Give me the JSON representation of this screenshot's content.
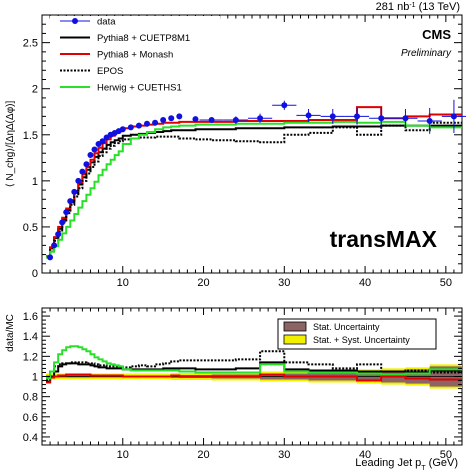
{
  "header": {
    "lumi_value": "281 nb",
    "lumi_exp": "-1",
    "lumi_energy": " (13 TeV)",
    "cms": "CMS",
    "preliminary": "Preliminary",
    "region": "transMAX"
  },
  "chart_data": [
    {
      "type": "line",
      "panel": "main",
      "ylabel": "⟨ N_chg⟩/[ΔηΔ(Δφ)]",
      "xlim": [
        0,
        52
      ],
      "ylim": [
        0,
        2.8
      ],
      "xticks": [
        10,
        20,
        30,
        40,
        50
      ],
      "yticks": [
        0,
        0.5,
        1,
        1.5,
        2,
        2.5
      ],
      "legend_position": "top-left",
      "data": {
        "name": "data",
        "color": "#1010e0",
        "x": [
          1.0,
          1.5,
          2.0,
          2.5,
          3.0,
          3.5,
          4.0,
          4.5,
          5.0,
          5.5,
          6.0,
          6.5,
          7.0,
          7.5,
          8.0,
          8.5,
          9.0,
          9.5,
          10.0,
          11.0,
          12.0,
          13.0,
          14.0,
          15.0,
          16.0,
          17.0,
          19.0,
          21.0,
          24.0,
          27.0,
          30.0,
          33.0,
          36.0,
          39.0,
          42.0,
          45.0,
          48.0,
          51.0
        ],
        "y": [
          0.17,
          0.3,
          0.42,
          0.55,
          0.66,
          0.78,
          0.88,
          1.0,
          1.1,
          1.18,
          1.28,
          1.34,
          1.4,
          1.43,
          1.47,
          1.5,
          1.52,
          1.54,
          1.56,
          1.58,
          1.6,
          1.62,
          1.63,
          1.66,
          1.68,
          1.7,
          1.67,
          1.66,
          1.66,
          1.68,
          1.82,
          1.71,
          1.7,
          1.7,
          1.68,
          1.68,
          1.65,
          1.7
        ],
        "yerr": [
          0.01,
          0.01,
          0.01,
          0.01,
          0.01,
          0.01,
          0.01,
          0.01,
          0.01,
          0.01,
          0.01,
          0.01,
          0.01,
          0.01,
          0.01,
          0.01,
          0.01,
          0.01,
          0.01,
          0.02,
          0.02,
          0.02,
          0.02,
          0.02,
          0.02,
          0.03,
          0.03,
          0.03,
          0.04,
          0.05,
          0.05,
          0.07,
          0.08,
          0.09,
          0.12,
          0.1,
          0.14,
          0.18
        ]
      },
      "edges": [
        0.5,
        1.0,
        1.5,
        2.0,
        2.5,
        3.0,
        3.5,
        4.0,
        4.5,
        5.0,
        5.5,
        6.0,
        6.5,
        7.0,
        7.5,
        8.0,
        8.5,
        9.0,
        9.5,
        10.0,
        11.0,
        12.0,
        13.0,
        14.0,
        15.0,
        16.0,
        17.0,
        19.0,
        21.0,
        24.0,
        27.0,
        30.0,
        33.0,
        36.0,
        39.0,
        42.0,
        45.0,
        48.0,
        52.0
      ],
      "series": [
        {
          "name": "Pythia8 + CUETP8M1",
          "color": "#000000",
          "dash": "solid",
          "values": [
            0.18,
            0.27,
            0.38,
            0.48,
            0.58,
            0.68,
            0.77,
            0.87,
            0.96,
            1.04,
            1.12,
            1.2,
            1.26,
            1.31,
            1.35,
            1.39,
            1.42,
            1.44,
            1.46,
            1.49,
            1.5,
            1.51,
            1.52,
            1.53,
            1.54,
            1.55,
            1.55,
            1.56,
            1.56,
            1.57,
            1.57,
            1.58,
            1.58,
            1.59,
            1.59,
            1.6,
            1.6,
            1.6
          ]
        },
        {
          "name": "Pythia8 + Monash",
          "color": "#e00000",
          "dash": "solid",
          "values": [
            0.18,
            0.28,
            0.39,
            0.5,
            0.6,
            0.7,
            0.79,
            0.89,
            0.98,
            1.07,
            1.15,
            1.23,
            1.3,
            1.36,
            1.41,
            1.45,
            1.49,
            1.52,
            1.54,
            1.57,
            1.59,
            1.6,
            1.61,
            1.62,
            1.63,
            1.63,
            1.64,
            1.64,
            1.64,
            1.65,
            1.65,
            1.65,
            1.66,
            1.66,
            1.8,
            1.68,
            1.7,
            1.72
          ]
        },
        {
          "name": "EPOS",
          "color": "#000000",
          "dash": "dotted",
          "values": [
            0.17,
            0.25,
            0.35,
            0.45,
            0.55,
            0.65,
            0.74,
            0.83,
            0.92,
            1.0,
            1.08,
            1.15,
            1.21,
            1.27,
            1.31,
            1.35,
            1.38,
            1.41,
            1.43,
            1.45,
            1.46,
            1.47,
            1.47,
            1.48,
            1.48,
            1.48,
            1.46,
            1.45,
            1.44,
            1.43,
            1.42,
            1.5,
            1.52,
            1.58,
            1.5,
            1.6,
            1.55,
            1.63
          ]
        },
        {
          "name": "Herwig + CUETHS1",
          "color": "#28e028",
          "dash": "solid",
          "values": [
            0.17,
            0.23,
            0.29,
            0.36,
            0.43,
            0.5,
            0.57,
            0.64,
            0.71,
            0.78,
            0.85,
            0.92,
            0.99,
            1.06,
            1.12,
            1.18,
            1.23,
            1.28,
            1.32,
            1.4,
            1.46,
            1.5,
            1.53,
            1.56,
            1.58,
            1.59,
            1.6,
            1.61,
            1.61,
            1.62,
            1.62,
            1.63,
            1.63,
            1.64,
            1.63,
            1.64,
            1.6,
            1.58
          ]
        }
      ]
    },
    {
      "type": "line",
      "panel": "ratio",
      "ylabel": "data/MC",
      "xlabel": "Leading Jet p",
      "xlabel_sub": "T",
      "xlabel_unit": " (GeV)",
      "xlim": [
        0,
        52
      ],
      "ylim": [
        0.32,
        1.68
      ],
      "xticks": [
        10,
        20,
        30,
        40,
        50
      ],
      "yticks": [
        0.4,
        0.6,
        0.8,
        1,
        1.2,
        1.4,
        1.6
      ],
      "legend_position": "top-right",
      "uncertainty_bands": [
        {
          "name": "Stat. Uncertainty",
          "color": "#8c6464"
        },
        {
          "name": "Stat. + Syst. Uncertainty",
          "color": "#f0f000"
        }
      ],
      "band_halfwidth_stat": [
        0.01,
        0.01,
        0.01,
        0.01,
        0.01,
        0.01,
        0.01,
        0.01,
        0.01,
        0.01,
        0.01,
        0.01,
        0.01,
        0.01,
        0.01,
        0.01,
        0.01,
        0.01,
        0.01,
        0.01,
        0.01,
        0.01,
        0.01,
        0.01,
        0.01,
        0.015,
        0.015,
        0.015,
        0.02,
        0.02,
        0.03,
        0.03,
        0.04,
        0.04,
        0.05,
        0.06,
        0.07,
        0.1
      ],
      "band_halfwidth_syst": [
        0.03,
        0.03,
        0.03,
        0.03,
        0.03,
        0.03,
        0.03,
        0.03,
        0.03,
        0.03,
        0.03,
        0.03,
        0.03,
        0.03,
        0.03,
        0.03,
        0.03,
        0.03,
        0.03,
        0.03,
        0.03,
        0.03,
        0.03,
        0.03,
        0.03,
        0.035,
        0.035,
        0.035,
        0.04,
        0.04,
        0.05,
        0.05,
        0.06,
        0.06,
        0.07,
        0.08,
        0.09,
        0.12
      ],
      "series": [
        {
          "name": "Pythia8 + CUETP8M1",
          "values": [
            0.95,
            1.0,
            1.05,
            1.1,
            1.12,
            1.13,
            1.13,
            1.13,
            1.12,
            1.12,
            1.12,
            1.11,
            1.1,
            1.09,
            1.09,
            1.08,
            1.08,
            1.08,
            1.08,
            1.07,
            1.07,
            1.07,
            1.07,
            1.07,
            1.08,
            1.08,
            1.08,
            1.07,
            1.07,
            1.08,
            1.14,
            1.07,
            1.06,
            1.06,
            1.05,
            1.05,
            1.04,
            1.06
          ]
        },
        {
          "name": "Pythia8 + Monash",
          "values": [
            0.94,
            0.99,
            1.0,
            1.01,
            1.01,
            1.02,
            1.02,
            1.02,
            1.02,
            1.02,
            1.02,
            1.01,
            1.01,
            1.01,
            1.01,
            1.01,
            1.01,
            1.01,
            1.01,
            1.0,
            1.0,
            1.0,
            1.0,
            1.0,
            1.0,
            1.01,
            1.0,
            1.0,
            1.0,
            1.0,
            1.02,
            1.0,
            1.0,
            1.0,
            0.96,
            1.0,
            0.98,
            0.97
          ]
        },
        {
          "name": "EPOS",
          "values": [
            0.97,
            1.05,
            1.1,
            1.12,
            1.13,
            1.13,
            1.14,
            1.14,
            1.14,
            1.14,
            1.13,
            1.13,
            1.12,
            1.11,
            1.11,
            1.1,
            1.1,
            1.1,
            1.1,
            1.09,
            1.1,
            1.11,
            1.1,
            1.12,
            1.13,
            1.15,
            1.16,
            1.16,
            1.16,
            1.17,
            1.25,
            1.14,
            1.12,
            1.08,
            1.12,
            1.05,
            1.06,
            1.04
          ]
        },
        {
          "name": "Herwig + CUETHS1",
          "values": [
            0.98,
            1.05,
            1.14,
            1.22,
            1.26,
            1.29,
            1.3,
            1.3,
            1.29,
            1.27,
            1.25,
            1.22,
            1.19,
            1.17,
            1.15,
            1.13,
            1.12,
            1.11,
            1.1,
            1.07,
            1.06,
            1.06,
            1.06,
            1.06,
            1.06,
            1.06,
            1.05,
            1.04,
            1.04,
            1.04,
            1.12,
            1.05,
            1.04,
            1.04,
            1.03,
            1.02,
            1.03,
            1.07
          ]
        }
      ]
    }
  ]
}
